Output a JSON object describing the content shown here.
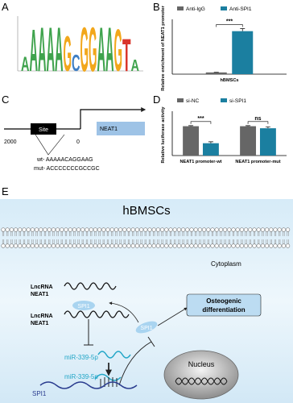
{
  "panel_labels": [
    "A",
    "B",
    "C",
    "D",
    "E"
  ],
  "logo": {
    "letters": [
      "A",
      "A",
      "A",
      "A",
      "A",
      "G",
      "C",
      "G",
      "G",
      "A",
      "A",
      "G",
      "T",
      "A"
    ],
    "heights": [
      0.6,
      1.8,
      1.9,
      1.9,
      1.9,
      1.5,
      0.7,
      1.9,
      1.9,
      1.9,
      1.9,
      1.8,
      1.4,
      0.5
    ],
    "colors": {
      "A": "#3fa34d",
      "C": "#3f7fc4",
      "G": "#f2a71b",
      "T": "#d9352b"
    }
  },
  "chart_data": [
    {
      "type": "bar",
      "ylabel": "Relative enrichment of NEAT1 promoter",
      "categories": [
        "hBMSCs"
      ],
      "series": [
        {
          "name": "Anti-IgG",
          "color": "#666666",
          "values": [
            1
          ],
          "errors": [
            0.05
          ]
        },
        {
          "name": "Anti-SPI1",
          "color": "#1b7fa0",
          "values": [
            25
          ],
          "errors": [
            1.5
          ]
        }
      ],
      "ylim": [
        0,
        30
      ],
      "annotations": [
        "***"
      ]
    },
    {
      "type": "bar",
      "ylabel": "Relative luciferase activity",
      "categories": [
        "NEAT1 promoter-wt",
        "NEAT1 promoter-mut"
      ],
      "series": [
        {
          "name": "si-NC",
          "color": "#666666",
          "values": [
            1.0,
            1.0
          ],
          "errors": [
            0.02,
            0.02
          ]
        },
        {
          "name": "si-SPI1",
          "color": "#1b7fa0",
          "values": [
            0.42,
            0.93
          ],
          "errors": [
            0.05,
            0.05
          ]
        }
      ],
      "ylim": [
        0,
        1.4
      ],
      "annotations": [
        "***",
        "ns"
      ]
    }
  ],
  "panel_c": {
    "start": "2000",
    "site": "Site",
    "end": "0",
    "gene": "NEAT1",
    "wt": "wt- AAAAACAGGAAG",
    "mut": "mut- ACCCCCCCGCCGC"
  },
  "panel_e": {
    "title": "hBMSCs",
    "cytoplasm": "Cytoplasm",
    "lncrna_top": [
      "LncRNA",
      "NEAT1"
    ],
    "lncrna_bottom": [
      "LncRNA",
      "NEAT1"
    ],
    "spi1_bound": "SPI1",
    "spi1_free": "SPI1",
    "mirna_top": "miR-339-5p",
    "mirna_bottom": "miR-339-5p",
    "mrna": "SPI1",
    "outcome": [
      "Osteogenic",
      "differentiation"
    ],
    "nucleus": "Nucleus"
  }
}
